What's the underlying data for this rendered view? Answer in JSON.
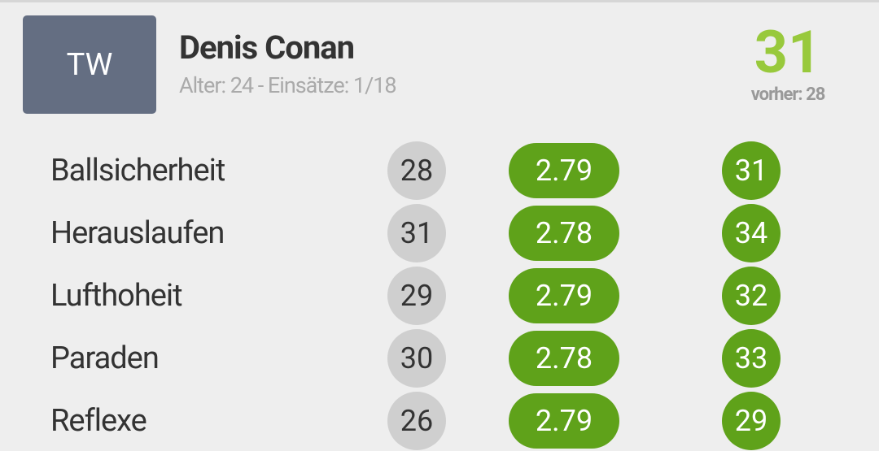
{
  "header": {
    "position": "TW",
    "name": "Denis Conan",
    "details": "Alter: 24 - Einsätze: 1/18",
    "rating": "31",
    "previous": "vorher: 28"
  },
  "rows": [
    {
      "label": "Ballsicherheit",
      "old": "28",
      "factor": "2.79",
      "new": "31"
    },
    {
      "label": "Herauslaufen",
      "old": "31",
      "factor": "2.78",
      "new": "34"
    },
    {
      "label": "Lufthoheit",
      "old": "29",
      "factor": "2.79",
      "new": "32"
    },
    {
      "label": "Paraden",
      "old": "30",
      "factor": "2.78",
      "new": "33"
    },
    {
      "label": "Reflexe",
      "old": "26",
      "factor": "2.79",
      "new": "29"
    }
  ]
}
